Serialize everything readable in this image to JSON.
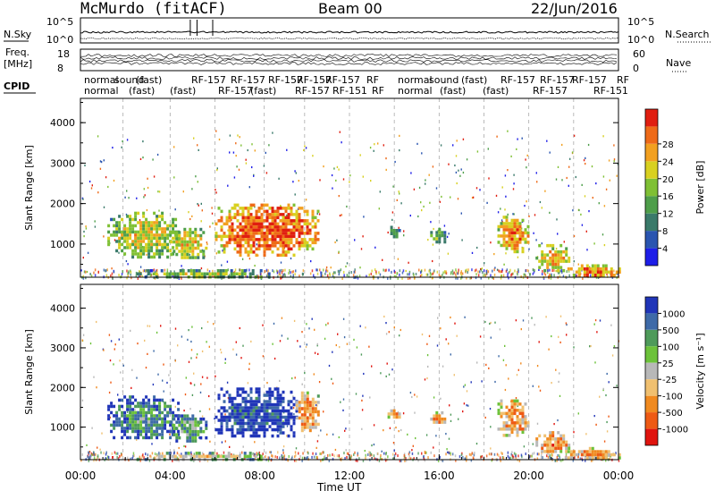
{
  "header": {
    "station": "McMurdo (fitACF)",
    "beam": "Beam 00",
    "date": "22/Jun/2016"
  },
  "noise_panel": {
    "left_label": "N.Sky",
    "right_label": "N.Search",
    "left_ticks": [
      "10^5",
      "10^0"
    ],
    "right_ticks": [
      "10^5",
      "10^0"
    ]
  },
  "freq_panel": {
    "left_label_line1": "Freq.",
    "left_label_line2": "[MHz]",
    "left_ticks": [
      "18",
      "8"
    ],
    "right_label": "Nave",
    "right_ticks": [
      "60",
      "0"
    ]
  },
  "cpid": {
    "label": "CPID",
    "row1": [
      "normal",
      "sound",
      "(fast)",
      "RF-157",
      "RF-157",
      "RF-157",
      "RF-157",
      "RF-157",
      "RF",
      "normal",
      "sound",
      "(fast)",
      "RF-157",
      "RF-157",
      "RF-157",
      "RF"
    ],
    "row2": [
      "normal",
      "(fast)",
      "(fast)",
      "RF-157",
      "(fast)",
      "RF-157",
      "RF-151",
      "RF",
      "normal",
      "(fast)",
      "(fast)",
      "RF-157",
      "RF-151"
    ]
  },
  "time_axis": {
    "label": "Time UT",
    "ticks": [
      "00:00",
      "04:00",
      "08:00",
      "12:00",
      "16:00",
      "20:00",
      "00:00"
    ]
  },
  "chart_data": [
    {
      "type": "heatmap",
      "name": "power",
      "ylabel": "Slant Range [km]",
      "xlim": [
        0,
        24
      ],
      "ylim": [
        180,
        4600
      ],
      "yticks": [
        "1000",
        "2000",
        "3000",
        "4000"
      ],
      "colorbar": {
        "label": "Power [dB]",
        "ticks": [
          "4",
          "8",
          "12",
          "16",
          "20",
          "24",
          "28"
        ],
        "colors": [
          "#1e1ee8",
          "#2a55b0",
          "#3a7a6a",
          "#4e9e4a",
          "#7fc034",
          "#d8d020",
          "#f2a020",
          "#ee6a18",
          "#e01e10"
        ]
      },
      "regions": [
        {
          "t": [
            1.2,
            4.4
          ],
          "r": [
            700,
            1800
          ],
          "level": 0.62
        },
        {
          "t": [
            4.0,
            5.6
          ],
          "r": [
            650,
            1400
          ],
          "level": 0.68
        },
        {
          "t": [
            6.0,
            10.6
          ],
          "r": [
            750,
            2000
          ],
          "level": 0.9
        },
        {
          "t": [
            13.7,
            14.2
          ],
          "r": [
            1200,
            1450
          ],
          "level": 0.42
        },
        {
          "t": [
            15.6,
            16.3
          ],
          "r": [
            1050,
            1400
          ],
          "level": 0.5
        },
        {
          "t": [
            18.6,
            20.0
          ],
          "r": [
            800,
            1700
          ],
          "level": 0.78
        },
        {
          "t": [
            20.3,
            21.8
          ],
          "r": [
            350,
            1000
          ],
          "level": 0.72
        },
        {
          "t": [
            21.6,
            24.0
          ],
          "r": [
            200,
            500
          ],
          "level": 0.82
        },
        {
          "t": [
            2.5,
            8.5
          ],
          "r": [
            200,
            380
          ],
          "level": 0.55
        }
      ]
    },
    {
      "type": "heatmap",
      "name": "velocity",
      "ylabel": "Slant Range [km]",
      "xlim": [
        0,
        24
      ],
      "ylim": [
        180,
        4600
      ],
      "yticks": [
        "1000",
        "2000",
        "3000",
        "4000"
      ],
      "colorbar": {
        "label": "Velocity [m s⁻¹]",
        "ticks": [
          "1000",
          "500",
          "100",
          "25",
          "-25",
          "-100",
          "-500",
          "-1000"
        ],
        "colors": [
          "#2035b8",
          "#3e6aa8",
          "#4e9a5a",
          "#6cc23a",
          "#b8b8b8",
          "#f0c070",
          "#f08a20",
          "#ee5a14",
          "#e0140e"
        ]
      },
      "regions": [
        {
          "t": [
            1.2,
            4.4
          ],
          "r": [
            700,
            1800
          ],
          "level": 0.3
        },
        {
          "t": [
            4.0,
            5.6
          ],
          "r": [
            650,
            1400
          ],
          "level": 0.35
        },
        {
          "t": [
            6.0,
            9.6
          ],
          "r": [
            750,
            2000
          ],
          "level": 0.15
        },
        {
          "t": [
            9.6,
            10.6
          ],
          "r": [
            900,
            1900
          ],
          "level": 0.75
        },
        {
          "t": [
            13.7,
            14.2
          ],
          "r": [
            1250,
            1450
          ],
          "level": 0.72
        },
        {
          "t": [
            15.6,
            16.3
          ],
          "r": [
            1100,
            1400
          ],
          "level": 0.72
        },
        {
          "t": [
            18.6,
            20.0
          ],
          "r": [
            800,
            1700
          ],
          "level": 0.74
        },
        {
          "t": [
            20.3,
            21.8
          ],
          "r": [
            350,
            900
          ],
          "level": 0.74
        },
        {
          "t": [
            21.6,
            24.0
          ],
          "r": [
            200,
            500
          ],
          "level": 0.74
        },
        {
          "t": [
            2.5,
            8.5
          ],
          "r": [
            200,
            380
          ],
          "level": 0.55
        }
      ]
    }
  ]
}
